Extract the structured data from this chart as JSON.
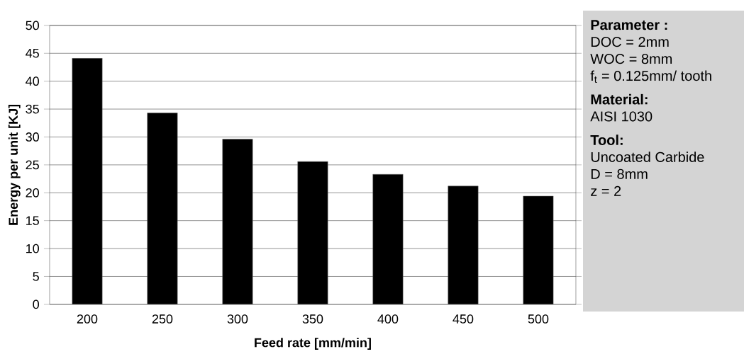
{
  "chart_data": {
    "type": "bar",
    "xlabel": "Feed rate [mm/min]",
    "ylabel": "Energy per unit [KJ]",
    "categories": [
      "200",
      "250",
      "300",
      "350",
      "400",
      "450",
      "500"
    ],
    "values": [
      44.1,
      34.3,
      29.6,
      25.6,
      23.3,
      21.2,
      19.4
    ],
    "color": "#000000",
    "ylim": [
      0,
      50
    ],
    "yticks": [
      0,
      5,
      10,
      15,
      20,
      25,
      30,
      35,
      40,
      45,
      50
    ],
    "grid": "y",
    "annotations": [
      "Parameter :",
      "DOC = 2mm",
      "WOC = 8mm",
      "f$_{t}$ = 0.125mm/ tooth",
      "Material:",
      "AISI 1030",
      "Tool:",
      "Uncoated  Carbide",
      "D = 8mm",
      "z = 2"
    ]
  }
}
